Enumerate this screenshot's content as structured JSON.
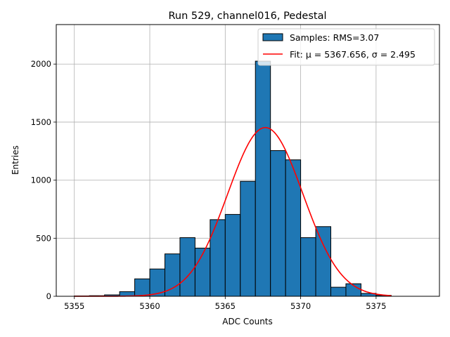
{
  "chart_data": {
    "type": "bar",
    "title": "Run 529, channel016, Pedestal",
    "xlabel": "ADC Counts",
    "ylabel": "Entries",
    "xlim": [
      5353.8,
      5379.2
    ],
    "ylim": [
      0,
      2340
    ],
    "xticks": [
      5355,
      5360,
      5365,
      5370,
      5375
    ],
    "yticks": [
      0,
      500,
      1000,
      1500,
      2000
    ],
    "grid": true,
    "legend_position": "top-right",
    "histogram": {
      "name": "Samples: RMS=3.07",
      "color": "#1f77b4",
      "edge_color": "#000000",
      "bin_width": 1,
      "bin_starts": [
        5355,
        5356,
        5357,
        5358,
        5359,
        5360,
        5361,
        5362,
        5363,
        5364,
        5365,
        5366,
        5367,
        5368,
        5369,
        5370,
        5371,
        5372,
        5373,
        5374,
        5375
      ],
      "values": [
        3,
        5,
        12,
        40,
        150,
        235,
        365,
        505,
        415,
        660,
        705,
        990,
        2025,
        1255,
        1175,
        505,
        600,
        78,
        108,
        25,
        8
      ]
    },
    "fit": {
      "name": "Fit: μ = 5367.656, σ = 2.495",
      "color": "#ff0000",
      "mu": 5367.656,
      "sigma": 2.495,
      "amplitude": 1453,
      "x_range": [
        5355,
        5376
      ]
    }
  }
}
